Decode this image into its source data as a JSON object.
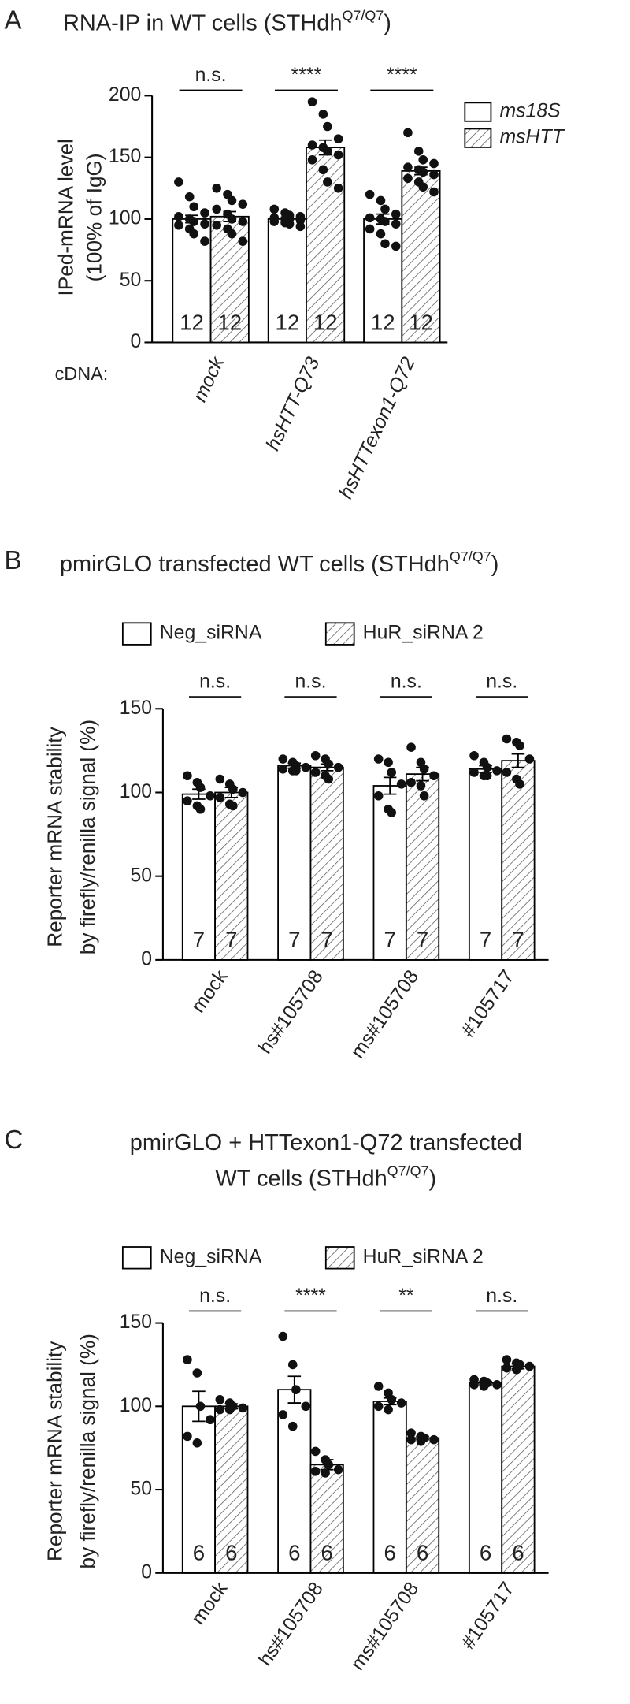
{
  "chart_data": [
    {
      "type": "bar",
      "panel": "A",
      "title": [
        "RNA-IP in WT cells (STHdh"
      ],
      "title_sup": "Q7/Q7",
      "title_end": ")",
      "ylabel": [
        "IPed-mRNA level",
        "(100% of IgG)"
      ],
      "xlabel": "cDNA:",
      "italic": true,
      "categories": [
        "mock",
        "hsHTT-Q73",
        "hsHTTexon1-Q72"
      ],
      "series": [
        {
          "name": "ms18S",
          "pattern": "none",
          "values": [
            100,
            100,
            100
          ],
          "errors": [
            3,
            1.5,
            4
          ],
          "points": [
            [
              130,
              118,
              110,
              105,
              102,
              100,
              98,
              96,
              95,
              92,
              88,
              82
            ],
            [
              108,
              105,
              103,
              102,
              101,
              100,
              100,
              99,
              98,
              97,
              96,
              94
            ],
            [
              120,
              115,
              108,
              104,
              101,
              100,
              98,
              96,
              92,
              88,
              80,
              78
            ]
          ],
          "n": [
            12,
            12,
            12
          ]
        },
        {
          "name": "msHTT",
          "pattern": "hatch",
          "values": [
            102,
            158,
            139
          ],
          "errors": [
            4,
            6,
            3
          ],
          "points": [
            [
              125,
              120,
              115,
              112,
              108,
              104,
              100,
              98,
              95,
              92,
              88,
              82
            ],
            [
              195,
              185,
              175,
              165,
              160,
              158,
              155,
              152,
              148,
              140,
              130,
              125
            ],
            [
              170,
              155,
              148,
              145,
              142,
              140,
              138,
              136,
              133,
              130,
              126,
              122
            ]
          ],
          "n": [
            12,
            12,
            12
          ]
        }
      ],
      "significance": [
        "n.s.",
        "****",
        "****"
      ],
      "legend": "right",
      "ylim": [
        0,
        200
      ],
      "yticks": [
        0,
        50,
        100,
        150,
        200
      ]
    },
    {
      "type": "bar",
      "panel": "B",
      "title": [
        "pmirGLO transfected WT cells (STHdh"
      ],
      "title_sup": "Q7/Q7",
      "title_end": ")",
      "ylabel": [
        "Reporter mRNA stability",
        "by firefly/renilla signal (%)"
      ],
      "italic": false,
      "categories": [
        "mock",
        "hs#105708",
        "ms#105708",
        "#105717"
      ],
      "series": [
        {
          "name": "Neg_siRNA",
          "pattern": "none",
          "values": [
            99,
            116,
            104,
            114
          ],
          "errors": [
            3,
            1.5,
            5,
            2
          ],
          "points": [
            [
              110,
              106,
              103,
              98,
              95,
              92,
              90
            ],
            [
              120,
              118,
              116,
              115,
              114,
              113,
              113
            ],
            [
              120,
              118,
              112,
              105,
              98,
              90,
              88
            ],
            [
              122,
              118,
              115,
              113,
              112,
              110,
              110
            ]
          ],
          "n": [
            7,
            7,
            7,
            7
          ]
        },
        {
          "name": "HuR_siRNA 2",
          "pattern": "hatch",
          "values": [
            100,
            115,
            111,
            119
          ],
          "errors": [
            3,
            2,
            4,
            4
          ],
          "points": [
            [
              108,
              105,
              102,
              100,
              97,
              93,
              92
            ],
            [
              122,
              120,
              117,
              115,
              112,
              110,
              108
            ],
            [
              127,
              118,
              114,
              110,
              106,
              104,
              98
            ],
            [
              132,
              130,
              128,
              120,
              112,
              108,
              105
            ]
          ],
          "n": [
            7,
            7,
            7,
            7
          ]
        }
      ],
      "significance": [
        "n.s.",
        "n.s.",
        "n.s.",
        "n.s."
      ],
      "legend": "top",
      "ylim": [
        0,
        150
      ],
      "yticks": [
        0,
        50,
        100,
        150
      ]
    },
    {
      "type": "bar",
      "panel": "C",
      "title": [
        "pmirGLO + HTTexon1-Q72 transfected",
        "WT cells (STHdh"
      ],
      "title_sup": "Q7/Q7",
      "title_end": ")",
      "ylabel": [
        "Reporter mRNA stability",
        "by firefly/renilla signal (%)"
      ],
      "italic": false,
      "categories": [
        "mock",
        "hs#105708",
        "ms#105708",
        "#105717"
      ],
      "series": [
        {
          "name": "Neg_siRNA",
          "pattern": "none",
          "values": [
            100,
            110,
            103,
            114
          ],
          "errors": [
            9,
            8,
            2,
            1
          ],
          "points": [
            [
              128,
              120,
              100,
              92,
              82,
              78
            ],
            [
              142,
              125,
              110,
              100,
              95,
              88
            ],
            [
              112,
              108,
              104,
              102,
              100,
              98
            ],
            [
              116,
              115,
              114,
              113,
              113,
              112
            ]
          ],
          "n": [
            6,
            6,
            6,
            6
          ]
        },
        {
          "name": "HuR_siRNA 2",
          "pattern": "hatch",
          "values": [
            100,
            65,
            81,
            124
          ],
          "errors": [
            1.5,
            3,
            1,
            1.5
          ],
          "points": [
            [
              104,
              102,
              100,
              99,
              98,
              98
            ],
            [
              73,
              68,
              65,
              62,
              61,
              60
            ],
            [
              84,
              82,
              81,
              80,
              80,
              79
            ],
            [
              128,
              126,
              125,
              124,
              123,
              122
            ]
          ],
          "n": [
            6,
            6,
            6,
            6
          ]
        }
      ],
      "significance": [
        "n.s.",
        "****",
        "**",
        "n.s."
      ],
      "legend": "top",
      "ylim": [
        0,
        150
      ],
      "yticks": [
        0,
        50,
        100,
        150
      ]
    }
  ]
}
